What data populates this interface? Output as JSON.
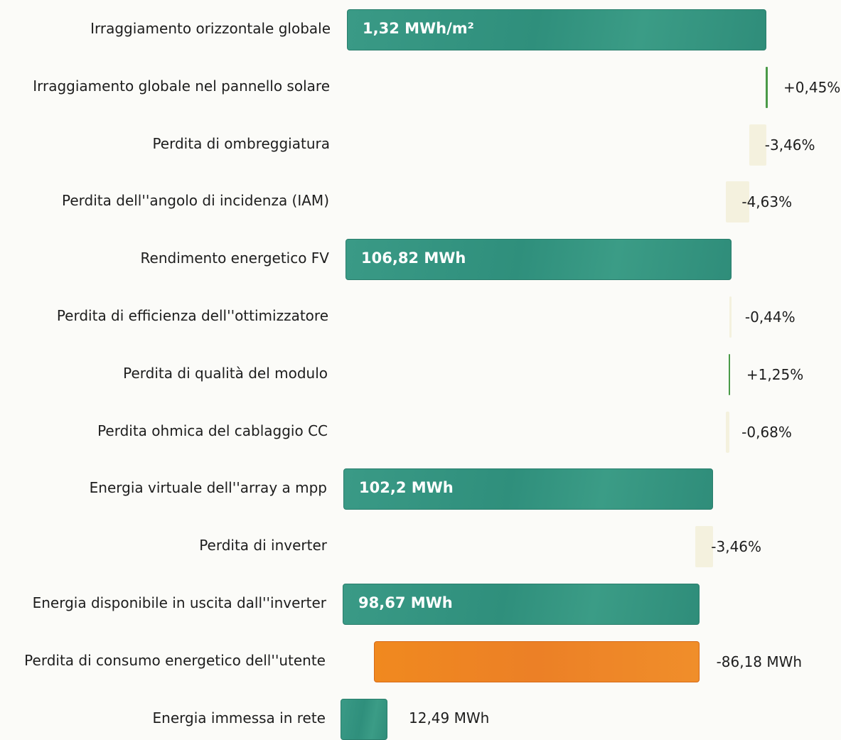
{
  "chart_data": {
    "type": "bar",
    "orientation": "horizontal-waterfall",
    "title": "",
    "rows": [
      {
        "label": "Irraggiamento orizzontale globale",
        "kind": "total",
        "value_text": "1,32 MWh/m²",
        "value": 1.32,
        "unit": "MWh/m²"
      },
      {
        "label": "Irraggiamento globale nel pannello solare",
        "kind": "gain",
        "value_text": "+0,45%",
        "value": 0.45,
        "unit": "%"
      },
      {
        "label": "Perdita di ombreggiatura",
        "kind": "loss",
        "value_text": "-3,46%",
        "value": -3.46,
        "unit": "%"
      },
      {
        "label": "Perdita dell''angolo di incidenza (IAM)",
        "kind": "loss",
        "value_text": "-4,63%",
        "value": -4.63,
        "unit": "%"
      },
      {
        "label": "Rendimento energetico FV",
        "kind": "total",
        "value_text": "106,82 MWh",
        "value": 106.82,
        "unit": "MWh"
      },
      {
        "label": "Perdita di efficienza dell''ottimizzatore",
        "kind": "loss",
        "value_text": "-0,44%",
        "value": -0.44,
        "unit": "%"
      },
      {
        "label": "Perdita di qualità del modulo",
        "kind": "gain",
        "value_text": "+1,25%",
        "value": 1.25,
        "unit": "%"
      },
      {
        "label": "Perdita ohmica del cablaggio CC",
        "kind": "loss",
        "value_text": "-0,68%",
        "value": -0.68,
        "unit": "%"
      },
      {
        "label": "Energia virtuale dell''array a mpp",
        "kind": "total",
        "value_text": "102,2 MWh",
        "value": 102.2,
        "unit": "MWh"
      },
      {
        "label": "Perdita di inverter",
        "kind": "loss",
        "value_text": "-3,46%",
        "value": -3.46,
        "unit": "%"
      },
      {
        "label": "Energia disponibile in uscita dall''inverter",
        "kind": "total",
        "value_text": "98,67 MWh",
        "value": 98.67,
        "unit": "MWh"
      },
      {
        "label": "Perdita di consumo energetico dell''utente",
        "kind": "consumption",
        "value_text": "-86,18 MWh",
        "value": -86.18,
        "unit": "MWh"
      },
      {
        "label": "Energia immessa in rete",
        "kind": "total-small",
        "value_text": "12,49 MWh",
        "value": 12.49,
        "unit": "MWh"
      }
    ]
  }
}
